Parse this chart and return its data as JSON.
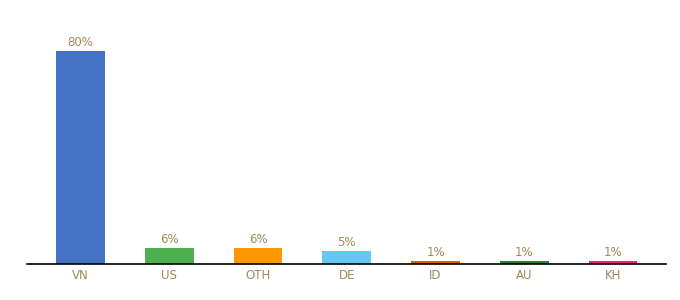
{
  "categories": [
    "VN",
    "US",
    "OTH",
    "DE",
    "ID",
    "AU",
    "KH"
  ],
  "values": [
    80,
    6,
    6,
    5,
    1,
    1,
    1
  ],
  "bar_colors": [
    "#4472C4",
    "#4CAF50",
    "#FF9800",
    "#64C8F0",
    "#CD6600",
    "#2E7D32",
    "#E91E8C"
  ],
  "labels": [
    "80%",
    "6%",
    "6%",
    "5%",
    "1%",
    "1%",
    "1%"
  ],
  "ylim": [
    0,
    90
  ],
  "background_color": "#ffffff",
  "label_fontsize": 8.5,
  "tick_fontsize": 8.5,
  "label_color": "#a08858"
}
